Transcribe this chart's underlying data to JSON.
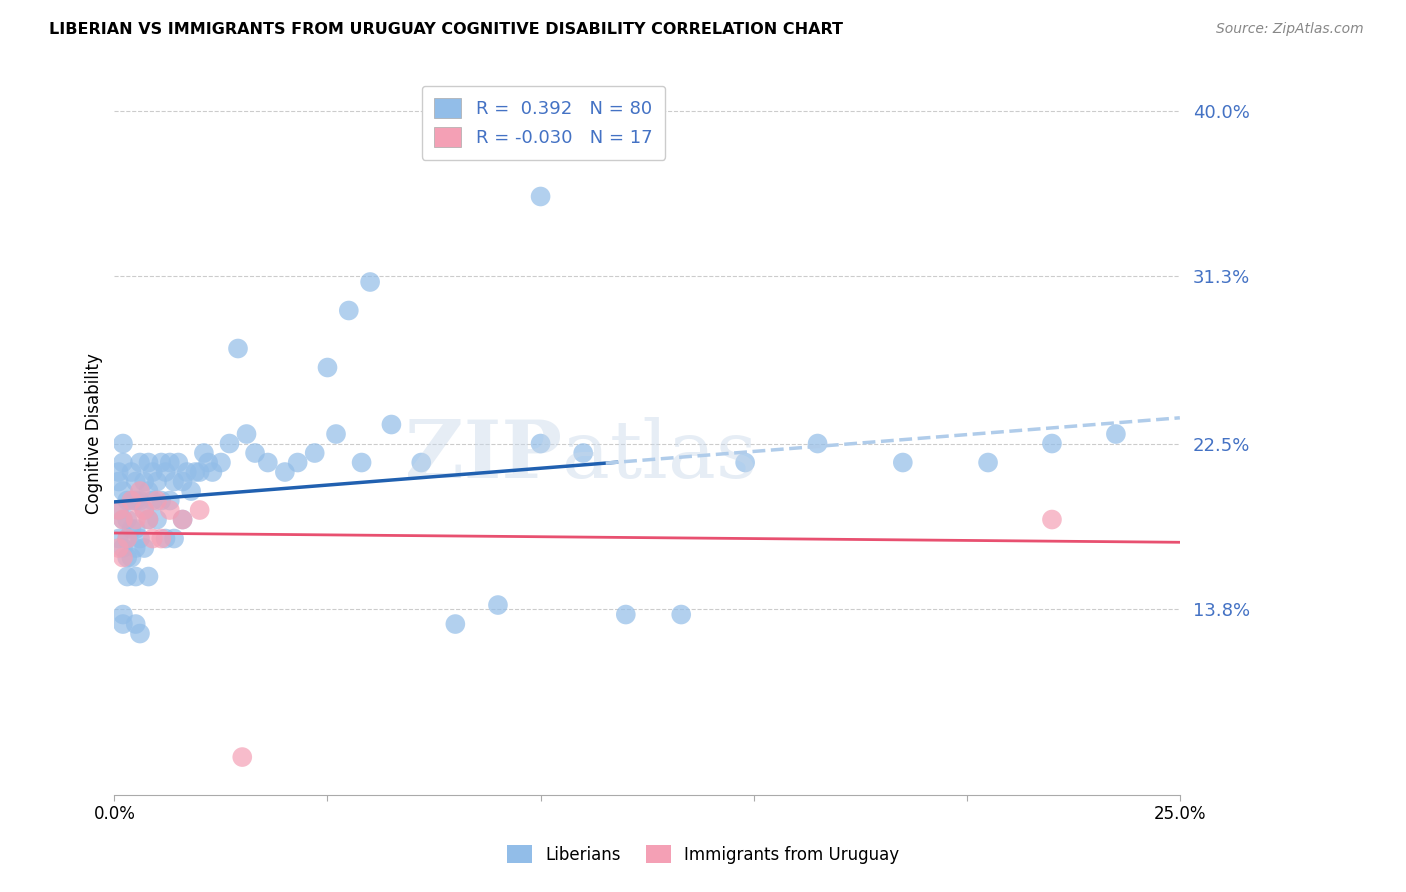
{
  "title": "LIBERIAN VS IMMIGRANTS FROM URUGUAY COGNITIVE DISABILITY CORRELATION CHART",
  "source": "Source: ZipAtlas.com",
  "ylabel": "Cognitive Disability",
  "xlim": [
    0.0,
    0.25
  ],
  "ylim": [
    0.04,
    0.42
  ],
  "yticks": [
    0.138,
    0.225,
    0.313,
    0.4
  ],
  "ytick_labels": [
    "13.8%",
    "22.5%",
    "31.3%",
    "40.0%"
  ],
  "xticks": [
    0.0,
    0.05,
    0.1,
    0.15,
    0.2,
    0.25
  ],
  "xtick_labels": [
    "0.0%",
    "",
    "",
    "",
    "",
    "25.0%"
  ],
  "liberian_R": 0.392,
  "liberian_N": 80,
  "uruguay_R": -0.03,
  "uruguay_N": 17,
  "liberian_color": "#92BDE8",
  "uruguay_color": "#F4A0B5",
  "liberian_line_color": "#2060B0",
  "uruguay_line_color": "#E85070",
  "trendline_ext_color": "#B0CCEA",
  "liberian_x": [
    0.001,
    0.001,
    0.001,
    0.001,
    0.002,
    0.002,
    0.002,
    0.002,
    0.002,
    0.003,
    0.003,
    0.003,
    0.003,
    0.003,
    0.004,
    0.004,
    0.004,
    0.004,
    0.005,
    0.005,
    0.005,
    0.005,
    0.005,
    0.006,
    0.006,
    0.006,
    0.007,
    0.007,
    0.007,
    0.008,
    0.008,
    0.008,
    0.008,
    0.009,
    0.009,
    0.01,
    0.01,
    0.011,
    0.011,
    0.012,
    0.012,
    0.013,
    0.013,
    0.014,
    0.014,
    0.015,
    0.016,
    0.016,
    0.017,
    0.018,
    0.019,
    0.02,
    0.021,
    0.022,
    0.023,
    0.025,
    0.027,
    0.029,
    0.031,
    0.033,
    0.036,
    0.04,
    0.043,
    0.047,
    0.052,
    0.058,
    0.065,
    0.072,
    0.08,
    0.09,
    0.1,
    0.11,
    0.12,
    0.133,
    0.148,
    0.165,
    0.185,
    0.205,
    0.22,
    0.235
  ],
  "liberian_y": [
    0.21,
    0.205,
    0.19,
    0.175,
    0.215,
    0.2,
    0.185,
    0.17,
    0.225,
    0.195,
    0.185,
    0.175,
    0.165,
    0.155,
    0.21,
    0.195,
    0.18,
    0.165,
    0.205,
    0.195,
    0.18,
    0.17,
    0.155,
    0.215,
    0.195,
    0.175,
    0.205,
    0.19,
    0.17,
    0.215,
    0.2,
    0.185,
    0.155,
    0.21,
    0.195,
    0.205,
    0.185,
    0.215,
    0.195,
    0.21,
    0.175,
    0.215,
    0.195,
    0.205,
    0.175,
    0.215,
    0.205,
    0.185,
    0.21,
    0.2,
    0.21,
    0.21,
    0.22,
    0.215,
    0.21,
    0.215,
    0.225,
    0.275,
    0.23,
    0.22,
    0.215,
    0.21,
    0.215,
    0.22,
    0.23,
    0.215,
    0.235,
    0.215,
    0.13,
    0.14,
    0.225,
    0.22,
    0.135,
    0.135,
    0.215,
    0.225,
    0.215,
    0.215,
    0.225,
    0.23
  ],
  "liberian_y_outliers": [
    0.355,
    0.31,
    0.295,
    0.265,
    0.135,
    0.13,
    0.13,
    0.125
  ],
  "liberian_x_outliers": [
    0.1,
    0.06,
    0.055,
    0.05,
    0.002,
    0.002,
    0.005,
    0.006
  ],
  "uruguay_x": [
    0.001,
    0.001,
    0.002,
    0.002,
    0.003,
    0.004,
    0.005,
    0.006,
    0.007,
    0.008,
    0.009,
    0.01,
    0.011,
    0.013,
    0.016,
    0.02,
    0.22
  ],
  "uruguay_y": [
    0.19,
    0.17,
    0.185,
    0.165,
    0.175,
    0.195,
    0.185,
    0.2,
    0.19,
    0.185,
    0.175,
    0.195,
    0.175,
    0.19,
    0.185,
    0.19,
    0.185
  ],
  "uruguay_y_outlier": [
    0.06
  ],
  "uruguay_x_outlier": [
    0.03
  ]
}
